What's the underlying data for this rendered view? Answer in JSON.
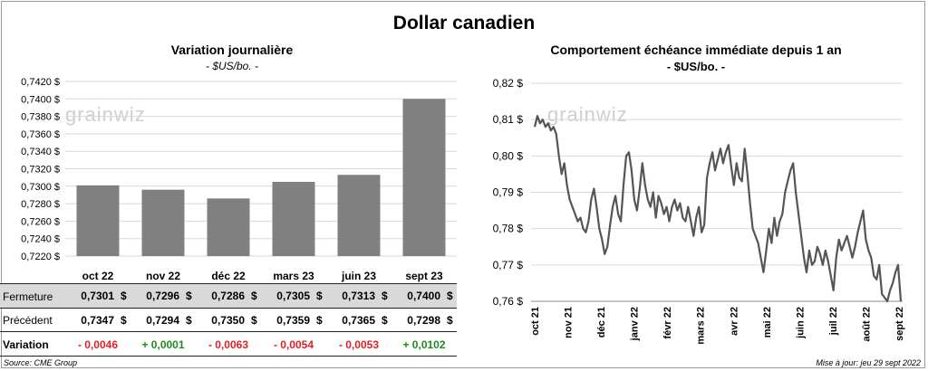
{
  "title": "Dollar canadien",
  "watermark": "grainwiz",
  "left_chart": {
    "title": "Variation  journalière",
    "unit": "- $US/bo. -"
  },
  "right_chart": {
    "title": "Comportement échéance immédiate depuis 1 an",
    "unit": "- $US/bo. -"
  },
  "table": {
    "rows": [
      {
        "label": "Fermeture",
        "values": [
          "0,7301",
          "0,7296",
          "0,7286",
          "0,7305",
          "0,7313",
          "0,7400"
        ]
      },
      {
        "label": "Précédent",
        "values": [
          "0,7347",
          "0,7294",
          "0,7350",
          "0,7359",
          "0,7365",
          "0,7298"
        ]
      }
    ],
    "currency": "$",
    "variation_label": "Variation",
    "variation": [
      "- 0,0046",
      "+ 0,0001",
      "- 0,0063",
      "- 0,0054",
      "- 0,0053",
      "+ 0,0102"
    ],
    "colors": {
      "negative": "#e21f26",
      "positive": "#1f8a1f",
      "shade": "#d9d9d9"
    }
  },
  "footer": {
    "source": "Source: CME Group",
    "updated": "Mise à jour: jeu 29 sept 2022"
  },
  "chart_data": [
    {
      "type": "bar",
      "categories": [
        "oct 22",
        "nov 22",
        "déc 22",
        "mars 23",
        "juin 23",
        "sept 23"
      ],
      "values": [
        0.7301,
        0.7296,
        0.7286,
        0.7305,
        0.7313,
        0.74
      ],
      "ylim": [
        0.722,
        0.742
      ],
      "yticks": [
        "0,7220 $",
        "0,7240 $",
        "0,7260 $",
        "0,7280 $",
        "0,7300 $",
        "0,7320 $",
        "0,7340 $",
        "0,7360 $",
        "0,7380 $",
        "0,7400 $",
        "0,7420 $"
      ],
      "grid": true,
      "bar_color": "#808080"
    },
    {
      "type": "line",
      "x_labels": [
        "oct 21",
        "nov 21",
        "déc 21",
        "janv 22",
        "févr 22",
        "mars 22",
        "avr 22",
        "mai 22",
        "juin 22",
        "juil 22",
        "août 22",
        "sept 22"
      ],
      "ylim": [
        0.76,
        0.82
      ],
      "yticks": [
        "0,76 $",
        "0,77 $",
        "0,78 $",
        "0,79 $",
        "0,80 $",
        "0,81 $",
        "0,82 $"
      ],
      "grid": true,
      "line_color": "#555555",
      "values": [
        0.808,
        0.811,
        0.809,
        0.81,
        0.808,
        0.809,
        0.807,
        0.808,
        0.806,
        0.8,
        0.795,
        0.798,
        0.792,
        0.788,
        0.786,
        0.784,
        0.782,
        0.783,
        0.78,
        0.779,
        0.782,
        0.788,
        0.791,
        0.786,
        0.78,
        0.777,
        0.773,
        0.775,
        0.781,
        0.786,
        0.789,
        0.784,
        0.782,
        0.792,
        0.8,
        0.801,
        0.796,
        0.788,
        0.785,
        0.791,
        0.798,
        0.792,
        0.788,
        0.786,
        0.79,
        0.783,
        0.789,
        0.787,
        0.784,
        0.786,
        0.782,
        0.786,
        0.788,
        0.785,
        0.787,
        0.783,
        0.782,
        0.786,
        0.782,
        0.778,
        0.783,
        0.786,
        0.779,
        0.781,
        0.794,
        0.798,
        0.801,
        0.796,
        0.799,
        0.802,
        0.798,
        0.801,
        0.803,
        0.797,
        0.792,
        0.798,
        0.794,
        0.793,
        0.802,
        0.795,
        0.787,
        0.78,
        0.778,
        0.776,
        0.772,
        0.768,
        0.774,
        0.78,
        0.776,
        0.783,
        0.778,
        0.782,
        0.784,
        0.79,
        0.793,
        0.796,
        0.798,
        0.79,
        0.784,
        0.778,
        0.772,
        0.768,
        0.774,
        0.77,
        0.771,
        0.775,
        0.773,
        0.77,
        0.774,
        0.771,
        0.767,
        0.763,
        0.772,
        0.777,
        0.774,
        0.776,
        0.778,
        0.775,
        0.772,
        0.775,
        0.779,
        0.782,
        0.785,
        0.777,
        0.774,
        0.772,
        0.767,
        0.766,
        0.77,
        0.762,
        0.761,
        0.76,
        0.763,
        0.765,
        0.768,
        0.77,
        0.76
      ]
    }
  ]
}
